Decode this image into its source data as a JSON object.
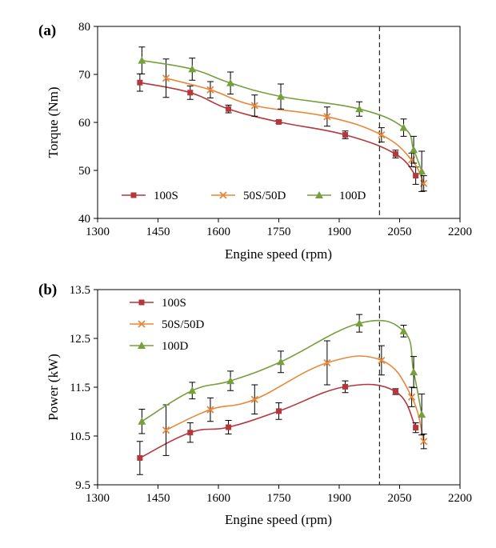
{
  "chart_data": [
    {
      "type": "line",
      "panel_label": "(a)",
      "xlabel": "Engine speed (rpm)",
      "ylabel": "Torque (Nm)",
      "xlim": [
        1300,
        2200
      ],
      "ylim": [
        40,
        80
      ],
      "x_ticks": [
        1300,
        1450,
        1600,
        1750,
        1900,
        2050,
        2200
      ],
      "y_ticks": [
        40,
        50,
        60,
        70,
        80
      ],
      "grid": false,
      "reference_line_x": 2000,
      "legend_position": "bottom-left",
      "legend_layout": "horizontal",
      "series": [
        {
          "name": "100S",
          "color": "#b5373c",
          "marker": "square",
          "x": [
            1405,
            1530,
            1625,
            1750,
            1915,
            2040,
            2090
          ],
          "y": [
            68.3,
            66.2,
            62.8,
            60.1,
            57.4,
            53.4,
            48.9
          ],
          "err": [
            1.8,
            1.4,
            0.8,
            0.3,
            0.8,
            0.8,
            1.8
          ]
        },
        {
          "name": "50S/50D",
          "color": "#e8883a",
          "marker": "x",
          "x": [
            1470,
            1580,
            1690,
            1870,
            2005,
            2080,
            2110
          ],
          "y": [
            69.2,
            66.8,
            63.5,
            61.2,
            57.4,
            52.2,
            47.3
          ],
          "err": [
            4.0,
            1.7,
            2.2,
            2.0,
            1.5,
            1.4,
            1.6
          ]
        },
        {
          "name": "100D",
          "color": "#77a03d",
          "marker": "triangle",
          "x": [
            1410,
            1535,
            1630,
            1755,
            1950,
            2060,
            2085,
            2105
          ],
          "y": [
            72.9,
            71.1,
            68.2,
            65.4,
            62.8,
            58.9,
            54.3,
            49.8
          ],
          "err": [
            2.8,
            2.3,
            2.3,
            2.6,
            1.5,
            1.8,
            2.8,
            4.2
          ]
        }
      ]
    },
    {
      "type": "line",
      "panel_label": "(b)",
      "xlabel": "Engine speed (rpm)",
      "ylabel": "Power (kW)",
      "xlim": [
        1300,
        2200
      ],
      "ylim": [
        9.5,
        13.5
      ],
      "x_ticks": [
        1300,
        1450,
        1600,
        1750,
        1900,
        2050,
        2200
      ],
      "y_ticks": [
        9.5,
        10.5,
        11.5,
        12.5,
        13.5
      ],
      "y_tick_labels": [
        "9.5",
        "10.5",
        "11.5",
        "12.5",
        "13.5"
      ],
      "grid": false,
      "reference_line_x": 2000,
      "legend_position": "top-left",
      "legend_layout": "vertical",
      "series": [
        {
          "name": "100S",
          "color": "#b5373c",
          "marker": "square",
          "x": [
            1405,
            1530,
            1625,
            1750,
            1915,
            2040,
            2090
          ],
          "y": [
            10.05,
            10.57,
            10.68,
            11.01,
            11.51,
            11.41,
            10.67
          ],
          "err": [
            0.34,
            0.2,
            0.14,
            0.17,
            0.12,
            0.06,
            0.1
          ]
        },
        {
          "name": "50S/50D",
          "color": "#e8883a",
          "marker": "x",
          "x": [
            1470,
            1580,
            1690,
            1870,
            2005,
            2080,
            2110
          ],
          "y": [
            10.62,
            11.04,
            11.25,
            12.0,
            12.05,
            11.3,
            10.39
          ],
          "err": [
            0.52,
            0.24,
            0.3,
            0.45,
            0.3,
            0.2,
            0.15
          ]
        },
        {
          "name": "100D",
          "color": "#77a03d",
          "marker": "triangle",
          "x": [
            1410,
            1535,
            1630,
            1755,
            1950,
            2060,
            2085,
            2105
          ],
          "y": [
            10.8,
            11.43,
            11.63,
            12.02,
            12.81,
            12.65,
            11.81,
            10.94
          ],
          "err": [
            0.25,
            0.17,
            0.2,
            0.22,
            0.18,
            0.12,
            0.32,
            0.42
          ]
        }
      ]
    }
  ]
}
